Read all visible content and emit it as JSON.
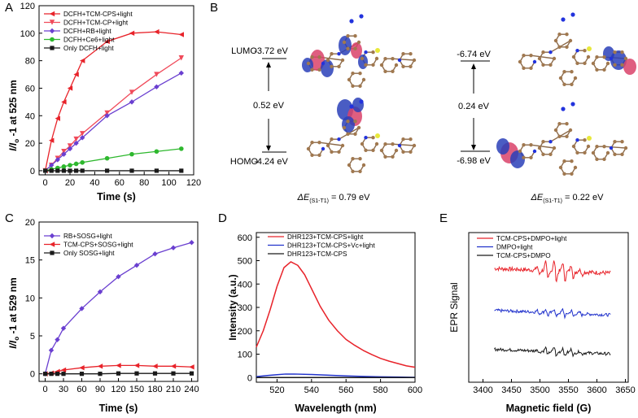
{
  "chart_data": [
    {
      "panel": "A",
      "type": "line",
      "xlabel": "Time (s)",
      "ylabel": "I/I₀ -1 at 525 nm",
      "xlim": [
        -5,
        120
      ],
      "ylim": [
        -3,
        120
      ],
      "xticks": [
        0,
        20,
        40,
        60,
        80,
        100,
        120
      ],
      "yticks": [
        0,
        20,
        40,
        60,
        80,
        100,
        120
      ],
      "legend_position": "top-left",
      "series": [
        {
          "name": "DCFH+TCM-CPS+light",
          "color": "#e8232a",
          "marker": "tri-left",
          "x": [
            0,
            5,
            10,
            15,
            20,
            25,
            30,
            50,
            70,
            90,
            110
          ],
          "y": [
            0,
            22,
            38,
            50,
            60,
            70,
            80,
            94,
            100,
            101,
            99
          ]
        },
        {
          "name": "DCFH+TCM-CP+light",
          "color": "#f04a5a",
          "marker": "tri-down",
          "x": [
            0,
            5,
            10,
            15,
            20,
            25,
            30,
            50,
            70,
            90,
            110
          ],
          "y": [
            0,
            4,
            9,
            14,
            18,
            23,
            27,
            42,
            57,
            70,
            82
          ]
        },
        {
          "name": "DCFH+RB+light",
          "color": "#6a3fd0",
          "marker": "diamond",
          "x": [
            0,
            5,
            10,
            15,
            20,
            25,
            30,
            50,
            70,
            90,
            110
          ],
          "y": [
            0,
            4,
            8,
            12,
            16,
            20,
            24,
            40,
            50,
            61,
            71
          ]
        },
        {
          "name": "DCFH+Ce6+light",
          "color": "#2eb82e",
          "marker": "circle",
          "x": [
            0,
            5,
            10,
            15,
            20,
            25,
            30,
            50,
            70,
            90,
            110
          ],
          "y": [
            0,
            1,
            2,
            3,
            4,
            5,
            6,
            9,
            12,
            14,
            16
          ]
        },
        {
          "name": "Only DCFH+light",
          "color": "#1a1a1a",
          "marker": "square",
          "x": [
            0,
            5,
            10,
            15,
            20,
            25,
            30,
            50,
            70,
            90,
            110
          ],
          "y": [
            0,
            0,
            0,
            0,
            0,
            0,
            0,
            0,
            0,
            0,
            0
          ]
        }
      ]
    },
    {
      "panel": "C",
      "type": "line",
      "xlabel": "Time (s)",
      "ylabel": "I/I₀ -1 at 529 nm",
      "xlim": [
        -10,
        250
      ],
      "ylim": [
        -1,
        20
      ],
      "xticks": [
        0,
        30,
        60,
        90,
        120,
        150,
        180,
        210,
        240
      ],
      "yticks": [
        0,
        5,
        10,
        15,
        20
      ],
      "legend_position": "top-left",
      "series": [
        {
          "name": "RB+SOSG+light",
          "color": "#6a3fd0",
          "marker": "diamond",
          "x": [
            0,
            10,
            20,
            30,
            60,
            90,
            120,
            150,
            180,
            210,
            240
          ],
          "y": [
            0,
            3.1,
            4.5,
            6.0,
            8.6,
            10.8,
            12.8,
            14.3,
            15.8,
            16.6,
            17.3
          ]
        },
        {
          "name": "TCM-CPS+SOSG+light",
          "color": "#e8232a",
          "marker": "tri-left",
          "x": [
            0,
            10,
            20,
            30,
            60,
            90,
            120,
            150,
            180,
            210,
            240
          ],
          "y": [
            0,
            0.1,
            0.3,
            0.5,
            0.8,
            1.0,
            1.1,
            1.1,
            1.0,
            1.0,
            0.9
          ]
        },
        {
          "name": "Only SOSG+light",
          "color": "#1a1a1a",
          "marker": "square",
          "x": [
            0,
            10,
            20,
            30,
            60,
            90,
            120,
            150,
            180,
            210,
            240
          ],
          "y": [
            0,
            0,
            0,
            0,
            0,
            0,
            0.05,
            0.05,
            0.05,
            0.05,
            0.05
          ]
        }
      ]
    },
    {
      "panel": "D",
      "type": "line",
      "xlabel": "Wavelength (nm)",
      "ylabel": "Intensity (a.u.)",
      "xlim": [
        508,
        600
      ],
      "ylim": [
        -20,
        620
      ],
      "xticks": [
        520,
        540,
        560,
        580,
        600
      ],
      "yticks": [
        0,
        100,
        200,
        300,
        400,
        500,
        600
      ],
      "legend_position": "top-right",
      "series": [
        {
          "name": "DHR123+TCM-CPS+light",
          "color": "#e8232a",
          "x": [
            508,
            512,
            516,
            520,
            524,
            528,
            532,
            536,
            540,
            545,
            550,
            555,
            560,
            565,
            570,
            575,
            580,
            585,
            590,
            595,
            600
          ],
          "y": [
            130,
            200,
            290,
            390,
            470,
            495,
            480,
            440,
            380,
            305,
            245,
            200,
            163,
            138,
            116,
            98,
            82,
            70,
            60,
            50,
            44
          ]
        },
        {
          "name": "DHR123+TCM-CPS+Vc+light",
          "color": "#2233cc",
          "x": [
            508,
            515,
            520,
            525,
            530,
            540,
            550,
            560,
            570,
            580,
            590,
            600
          ],
          "y": [
            4,
            9,
            12,
            15,
            15,
            13,
            10,
            7,
            5,
            3,
            2,
            1
          ]
        },
        {
          "name": "DHR123+TCM-CPS",
          "color": "#1a1a1a",
          "x": [
            508,
            520,
            540,
            560,
            580,
            600
          ],
          "y": [
            0,
            0,
            0,
            0,
            0,
            0
          ]
        }
      ]
    },
    {
      "panel": "E",
      "type": "line",
      "xlabel": "Magnetic field (G)",
      "ylabel": "EPR Signal",
      "xlim": [
        3375,
        3655
      ],
      "ylim": [
        -1,
        9
      ],
      "xticks": [
        3400,
        3450,
        3500,
        3550,
        3600,
        3650
      ],
      "legend_position": "top-left",
      "series": [
        {
          "name": "TCM-CPS+DMPO+light",
          "color": "#e8232a",
          "offset": 6.6,
          "noise": 0.14,
          "peaks": 1.1
        },
        {
          "name": "DMPO+light",
          "color": "#2233cc",
          "offset": 3.8,
          "noise": 0.1,
          "peaks": 0.45
        },
        {
          "name": "TCM-CPS+DMPO",
          "color": "#1a1a1a",
          "offset": 1.2,
          "noise": 0.1,
          "peaks": 0.5
        }
      ]
    }
  ],
  "panels": {
    "a": {
      "letter": "A",
      "ylabel_main": "I/I",
      "ylabel_sub": "o",
      "ylabel_tail": " -1 at 525 nm"
    },
    "b": {
      "letter": "B",
      "lumo_label": "LUMO",
      "homo_label": "HOMO",
      "left_lumo": "-3.72 eV",
      "left_homo": "-4.24 eV",
      "left_gap": "0.52 eV",
      "right_lumo": "-6.74 eV",
      "right_homo": "-6.98 eV",
      "right_gap": "0.24 eV",
      "delta_symbol": "ΔE",
      "delta_sub": "(S1-T1)",
      "left_delta": " = 0.79 eV",
      "right_delta": " = 0.22 eV"
    },
    "c": {
      "letter": "C",
      "ylabel_main": "I/I",
      "ylabel_sub": "o",
      "ylabel_tail": " -1 at 529 nm"
    },
    "d": {
      "letter": "D"
    },
    "e": {
      "letter": "E"
    }
  }
}
